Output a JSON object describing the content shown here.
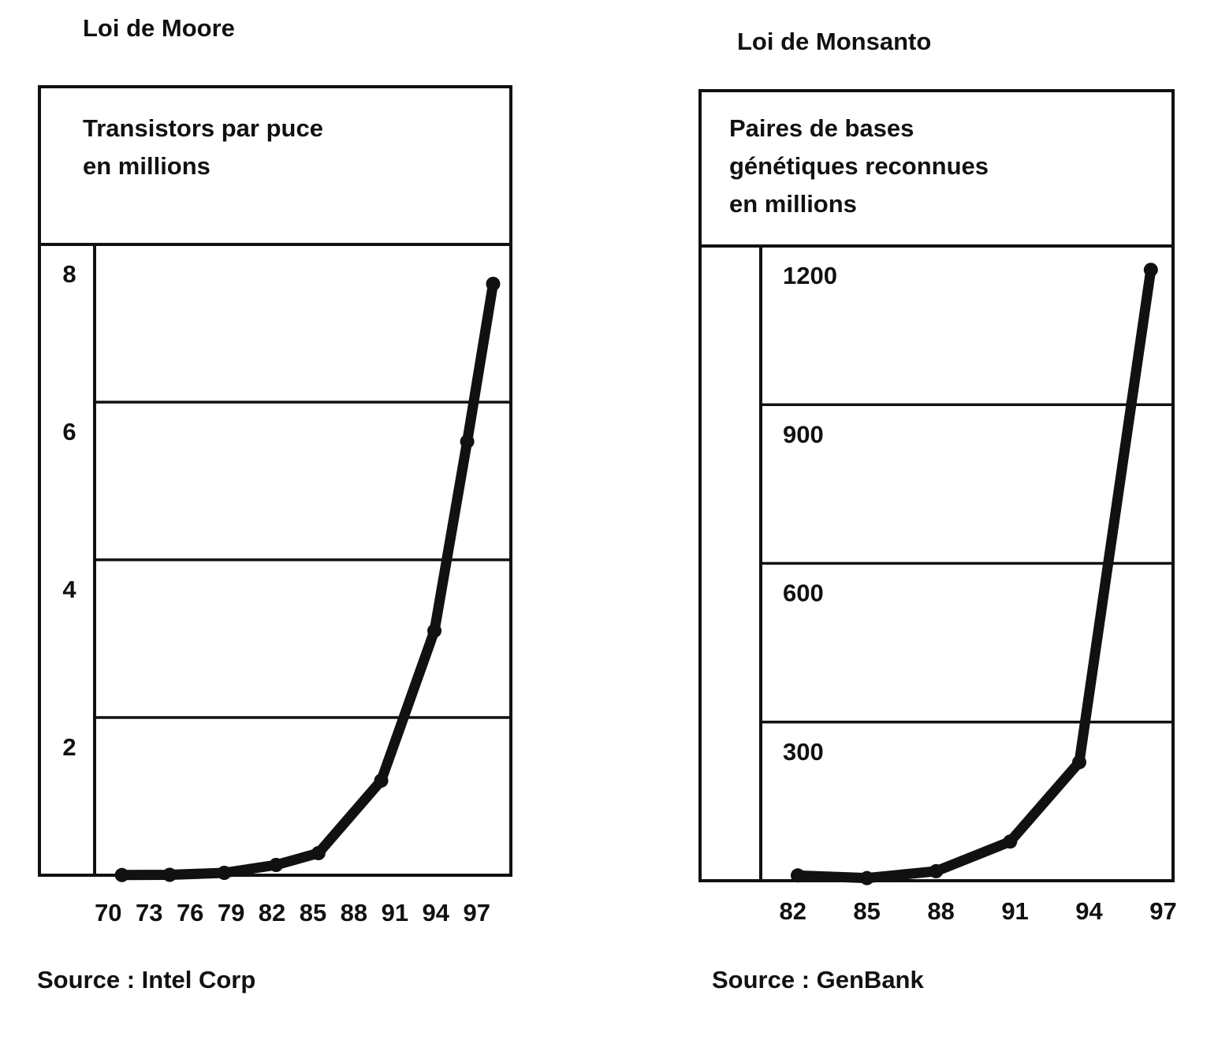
{
  "chart_data": [
    {
      "type": "line",
      "title": "Loi de Moore",
      "y_label": [
        "Transistors par puce",
        "en millions"
      ],
      "source": "Source : Intel Corp",
      "x": [
        71,
        74.5,
        78.5,
        82.3,
        85.4,
        90,
        93.9,
        96.3,
        98.2
      ],
      "values": [
        0.002,
        0.005,
        0.03,
        0.13,
        0.28,
        1.2,
        3.1,
        5.5,
        7.5
      ],
      "color": "#111111",
      "xlim": [
        69,
        99.5
      ],
      "xticks": [
        70,
        73,
        76,
        79,
        82,
        85,
        88,
        91,
        94,
        97
      ],
      "ylim": [
        0,
        8
      ],
      "yticks": [
        2,
        4,
        6,
        8
      ],
      "grid": true
    },
    {
      "type": "line",
      "title": "Loi de Monsanto",
      "y_label": [
        "Paires de bases",
        "génétiques reconnues",
        "en millions"
      ],
      "source": "Source : GenBank",
      "x": [
        82.2,
        85,
        87.8,
        90.8,
        93.6,
        96.5
      ],
      "values": [
        10,
        5,
        18,
        74,
        224,
        1155
      ],
      "color": "#111111",
      "xlim": [
        80.7,
        97.4
      ],
      "xticks": [
        82,
        85,
        88,
        91,
        94,
        97
      ],
      "ylim": [
        0,
        1200
      ],
      "yticks": [
        300,
        600,
        900,
        1200
      ],
      "grid": true
    }
  ]
}
